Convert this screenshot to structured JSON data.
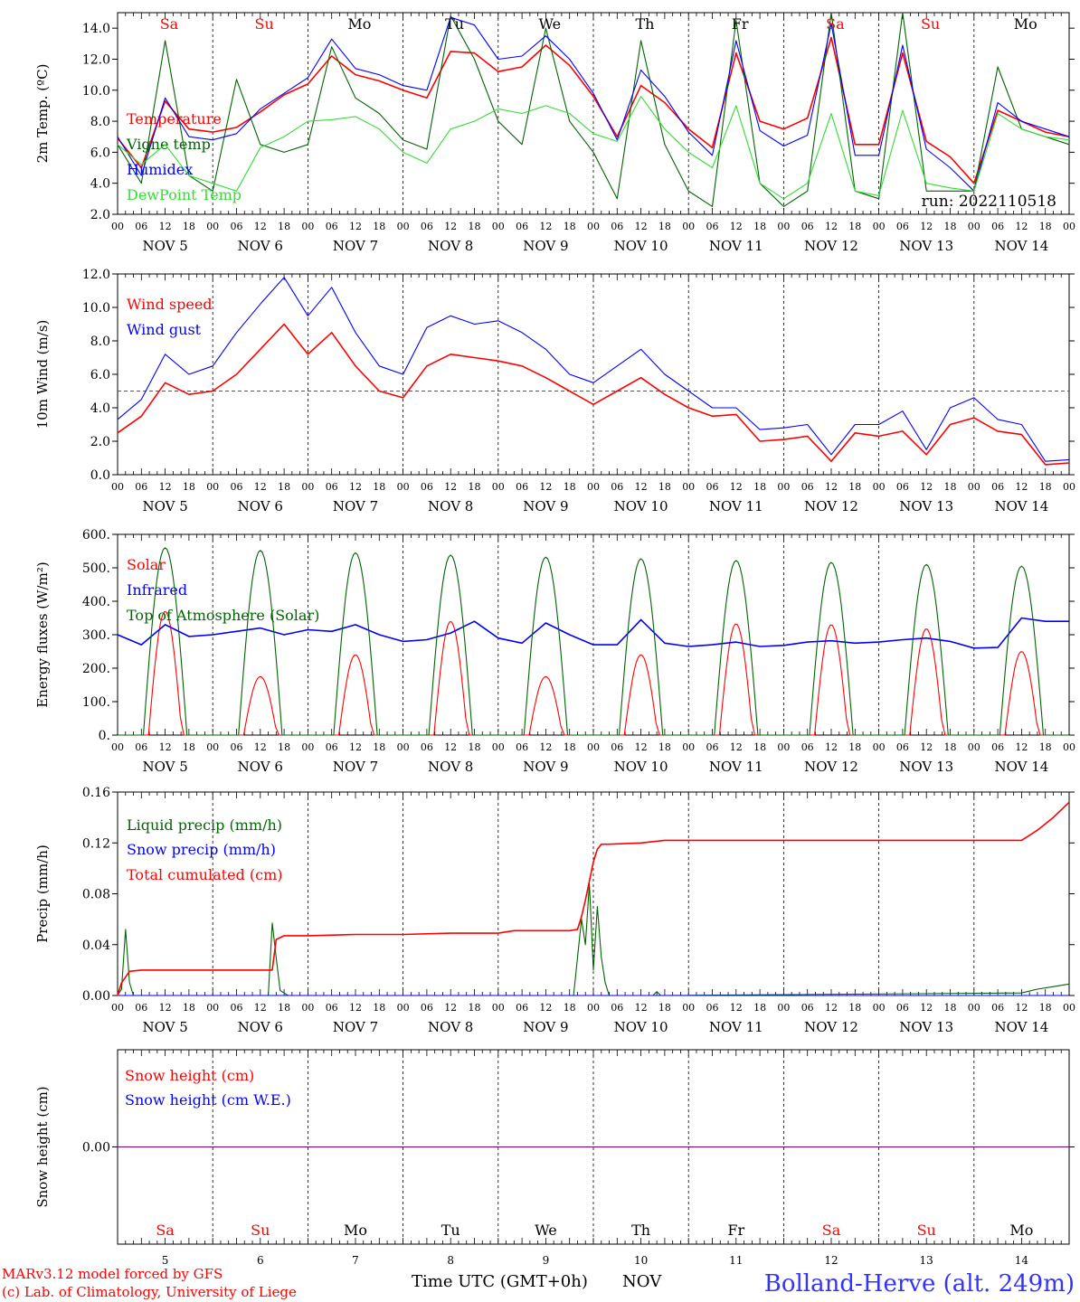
{
  "colors": {
    "red": "#ff0000",
    "green": "#006400",
    "blue": "#0000ff",
    "lightgreen": "#33dd33",
    "title": "#3333ff",
    "purple": "#800080"
  },
  "header_days": [
    "Sa",
    "Su",
    "Mo",
    "Tu",
    "We",
    "Th",
    "Fr",
    "Sa",
    "Su",
    "Mo"
  ],
  "header_day_colors": [
    "red",
    "red",
    "black",
    "black",
    "black",
    "black",
    "black",
    "red",
    "red",
    "black"
  ],
  "hour_ticks": [
    "00",
    "06",
    "12",
    "18"
  ],
  "date_labels": [
    "NOV  5",
    "NOV  6",
    "NOV  7",
    "NOV  8",
    "NOV  9",
    "NOV 10",
    "NOV 11",
    "NOV 12",
    "NOV 13",
    "NOV 14"
  ],
  "bottom_day_numbers": [
    "5",
    "6",
    "7",
    "8",
    "9",
    "10",
    "11",
    "12",
    "13",
    "14"
  ],
  "run_label": "run: 2022110518",
  "footer": {
    "credit_line1": "MARv3.12 model forced by GFS",
    "credit_line2": "(c) Lab. of Climatology, University of Liege",
    "time_label": "Time UTC (GMT+0h)",
    "month_label": "NOV",
    "station": "Bolland-Herve (alt. 249m)"
  },
  "chart_data": [
    {
      "type": "line",
      "ylabel": "2m Temp. (ºC)",
      "ylim": [
        2,
        15
      ],
      "yticks": [
        "2.0",
        "4.0",
        "6.0",
        "8.0",
        "10.0",
        "12.0",
        "14.0"
      ],
      "ytick_values": [
        2,
        4,
        6,
        8,
        10,
        12,
        14
      ],
      "x_unit": "hours since 2022-11-05 00 UTC",
      "xlim": [
        0,
        240
      ],
      "series": [
        {
          "name": "Temperature",
          "color": "red",
          "x": [
            0,
            6,
            12,
            18,
            24,
            30,
            36,
            42,
            48,
            54,
            60,
            66,
            72,
            78,
            84,
            90,
            96,
            102,
            108,
            114,
            120,
            126,
            132,
            138,
            144,
            150,
            156,
            162,
            168,
            174,
            180,
            186,
            192,
            198,
            204,
            210,
            216,
            222,
            228,
            234,
            240
          ],
          "y": [
            6.9,
            5.0,
            9.3,
            7.5,
            7.3,
            7.6,
            8.6,
            9.7,
            10.4,
            12.2,
            11.0,
            10.6,
            10.0,
            9.5,
            12.5,
            12.4,
            11.2,
            11.5,
            12.9,
            11.6,
            9.6,
            7.0,
            10.3,
            9.2,
            7.5,
            6.3,
            12.4,
            8.0,
            7.5,
            8.2,
            13.4,
            6.5,
            6.5,
            12.4,
            6.7,
            5.7,
            4.0,
            8.7,
            8.0,
            7.3,
            7.0
          ]
        },
        {
          "name": "Vigne temp",
          "color": "green",
          "x": [
            0,
            6,
            12,
            18,
            24,
            30,
            36,
            42,
            48,
            54,
            60,
            66,
            72,
            78,
            84,
            90,
            96,
            102,
            108,
            114,
            120,
            126,
            132,
            138,
            144,
            150,
            156,
            162,
            168,
            174,
            180,
            186,
            192,
            198,
            204,
            210,
            216,
            222,
            228,
            234,
            240
          ],
          "y": [
            6.5,
            4.0,
            13.2,
            4.5,
            3.5,
            10.7,
            6.5,
            6.0,
            6.5,
            12.8,
            9.5,
            8.5,
            6.8,
            6.2,
            14.8,
            12.0,
            8.0,
            6.5,
            14.0,
            8.0,
            6.0,
            3.0,
            13.2,
            6.5,
            3.5,
            2.5,
            14.5,
            4.0,
            2.5,
            3.5,
            15.0,
            3.5,
            3.0,
            15.0,
            3.5,
            3.5,
            3.5,
            11.5,
            7.5,
            7.0,
            6.5
          ]
        },
        {
          "name": "Humidex",
          "color": "blue",
          "x": [
            0,
            6,
            12,
            18,
            24,
            30,
            36,
            42,
            48,
            54,
            60,
            66,
            72,
            78,
            84,
            90,
            96,
            102,
            108,
            114,
            120,
            126,
            132,
            138,
            144,
            150,
            156,
            162,
            168,
            174,
            180,
            186,
            192,
            198,
            204,
            210,
            216,
            222,
            228,
            234,
            240
          ],
          "y": [
            7.0,
            4.5,
            9.5,
            7.0,
            6.8,
            7.2,
            8.8,
            9.8,
            10.8,
            13.3,
            11.4,
            11.0,
            10.3,
            10.0,
            14.7,
            14.2,
            12.0,
            12.2,
            13.5,
            12.0,
            9.8,
            6.8,
            11.3,
            9.6,
            7.3,
            5.8,
            13.2,
            7.4,
            6.4,
            7.1,
            14.3,
            5.8,
            5.8,
            12.9,
            6.2,
            5.0,
            3.5,
            9.2,
            8.0,
            7.5,
            7.0
          ]
        },
        {
          "name": "DewPoint Temp",
          "color": "lightgreen",
          "x": [
            0,
            6,
            12,
            18,
            24,
            30,
            36,
            42,
            48,
            54,
            60,
            66,
            72,
            78,
            84,
            90,
            96,
            102,
            108,
            114,
            120,
            126,
            132,
            138,
            144,
            150,
            156,
            162,
            168,
            174,
            180,
            186,
            192,
            198,
            204,
            210,
            216,
            222,
            228,
            234,
            240
          ],
          "y": [
            6.5,
            5.2,
            6.5,
            4.5,
            4.0,
            3.5,
            6.3,
            7.0,
            8.0,
            8.1,
            8.3,
            7.5,
            6.0,
            5.3,
            7.5,
            8.0,
            8.8,
            8.5,
            9.0,
            8.5,
            7.2,
            6.7,
            9.6,
            7.5,
            6.0,
            5.0,
            9.0,
            4.0,
            3.0,
            4.0,
            8.5,
            3.5,
            3.2,
            8.7,
            4.0,
            3.7,
            3.5,
            8.5,
            7.5,
            7.0,
            6.8
          ]
        }
      ]
    },
    {
      "type": "line",
      "ylabel": "10m Wind (m/s)",
      "ylim": [
        0,
        12
      ],
      "yticks": [
        "0.0",
        "2.0",
        "4.0",
        "6.0",
        "8.0",
        "10.0",
        "12.0"
      ],
      "ytick_values": [
        0,
        2,
        4,
        6,
        8,
        10,
        12
      ],
      "reference_line": 5,
      "x_unit": "hours since 2022-11-05 00 UTC",
      "xlim": [
        0,
        240
      ],
      "series": [
        {
          "name": "Wind speed",
          "color": "red",
          "x": [
            0,
            6,
            12,
            18,
            24,
            30,
            36,
            42,
            48,
            54,
            60,
            66,
            72,
            78,
            84,
            90,
            96,
            102,
            108,
            114,
            120,
            126,
            132,
            138,
            144,
            150,
            156,
            162,
            168,
            174,
            180,
            186,
            192,
            198,
            204,
            210,
            216,
            222,
            228,
            234,
            240
          ],
          "y": [
            2.5,
            3.5,
            5.5,
            4.8,
            5.0,
            6.0,
            7.5,
            9.0,
            7.2,
            8.5,
            6.5,
            5.0,
            4.6,
            6.5,
            7.2,
            7.0,
            6.8,
            6.5,
            5.8,
            5.0,
            4.2,
            5.0,
            5.8,
            4.8,
            4.0,
            3.5,
            3.6,
            2.0,
            2.1,
            2.3,
            0.8,
            2.5,
            2.3,
            2.6,
            1.2,
            3.0,
            3.4,
            2.6,
            2.4,
            0.6,
            0.7
          ]
        },
        {
          "name": "Wind gust",
          "color": "blue",
          "x": [
            0,
            6,
            12,
            18,
            24,
            30,
            36,
            42,
            48,
            54,
            60,
            66,
            72,
            78,
            84,
            90,
            96,
            102,
            108,
            114,
            120,
            126,
            132,
            138,
            144,
            150,
            156,
            162,
            168,
            174,
            180,
            186,
            192,
            198,
            204,
            210,
            216,
            222,
            228,
            234,
            240
          ],
          "y": [
            3.3,
            4.5,
            7.2,
            6.0,
            6.5,
            8.5,
            10.2,
            11.8,
            9.5,
            11.2,
            8.5,
            6.5,
            6.0,
            8.8,
            9.5,
            9.0,
            9.2,
            8.5,
            7.5,
            6.0,
            5.5,
            6.5,
            7.5,
            6.0,
            5.0,
            4.0,
            4.0,
            2.7,
            2.8,
            3.0,
            1.2,
            3.0,
            3.0,
            3.8,
            1.5,
            4.0,
            4.6,
            3.3,
            3.0,
            0.8,
            0.9
          ]
        }
      ]
    },
    {
      "type": "line",
      "ylabel": "Energy fluxes (W/m²)",
      "ylim": [
        0,
        600
      ],
      "yticks": [
        "0.",
        "100.",
        "200.",
        "300.",
        "400.",
        "500.",
        "600."
      ],
      "ytick_values": [
        0,
        100,
        200,
        300,
        400,
        500,
        600
      ],
      "x_unit": "hours since 2022-11-05 00 UTC",
      "xlim": [
        0,
        240
      ],
      "series": [
        {
          "name": "Solar",
          "color": "red",
          "daily_peaks": [
            370,
            175,
            240,
            340,
            175,
            240,
            333,
            330,
            318,
            250
          ]
        },
        {
          "name": "Infrared",
          "color": "blue",
          "x": [
            0,
            6,
            12,
            18,
            24,
            30,
            36,
            42,
            48,
            54,
            60,
            66,
            72,
            78,
            84,
            90,
            96,
            102,
            108,
            114,
            120,
            126,
            132,
            138,
            144,
            150,
            156,
            162,
            168,
            174,
            180,
            186,
            192,
            198,
            204,
            210,
            216,
            222,
            228,
            234,
            240
          ],
          "y": [
            300,
            270,
            330,
            295,
            300,
            310,
            320,
            300,
            315,
            310,
            330,
            300,
            280,
            285,
            305,
            340,
            290,
            275,
            335,
            300,
            270,
            270,
            345,
            275,
            265,
            270,
            278,
            265,
            268,
            278,
            282,
            275,
            278,
            285,
            290,
            280,
            260,
            262,
            350,
            340,
            340
          ]
        },
        {
          "name": "Top of Atmosphere (Solar)",
          "color": "green",
          "daily_peaks": [
            560,
            552,
            545,
            538,
            532,
            527,
            522,
            516,
            510,
            505
          ]
        }
      ]
    },
    {
      "type": "line",
      "ylabel": "Precip (mm/h)",
      "ylim": [
        0,
        0.16
      ],
      "yticks": [
        "0.00",
        "0.04",
        "0.08",
        "0.12",
        "0.16"
      ],
      "ytick_values": [
        0,
        0.04,
        0.08,
        0.12,
        0.16
      ],
      "x_unit": "hours since 2022-11-05 00 UTC",
      "xlim": [
        0,
        240
      ],
      "series": [
        {
          "name": "Liquid precip (mm/h)",
          "color": "green",
          "x": [
            0,
            1,
            2,
            3,
            4,
            38,
            39,
            40,
            41,
            42,
            43,
            115,
            116,
            117,
            118,
            119,
            120,
            121,
            122,
            123,
            124,
            135,
            136,
            137,
            228,
            232,
            236,
            240
          ],
          "y": [
            0,
            0.005,
            0.052,
            0.01,
            0,
            0,
            0.057,
            0.03,
            0.004,
            0.002,
            0,
            0,
            0.03,
            0.06,
            0.04,
            0.088,
            0.02,
            0.07,
            0.03,
            0.01,
            0,
            0,
            0.003,
            0,
            0.002,
            0.005,
            0.007,
            0.009
          ]
        },
        {
          "name": "Snow precip (mm/h)",
          "color": "blue",
          "x": [
            0,
            240
          ],
          "y": [
            0,
            0
          ]
        },
        {
          "name": "Total cumulated (cm)",
          "color": "red",
          "x": [
            0,
            1,
            3,
            6,
            12,
            24,
            36,
            39,
            40,
            42,
            48,
            60,
            72,
            84,
            96,
            100,
            108,
            114,
            116,
            117,
            118,
            119,
            120,
            121,
            122,
            124,
            132,
            138,
            144,
            156,
            168,
            180,
            192,
            204,
            216,
            228,
            232,
            236,
            240
          ],
          "y": [
            0,
            0.01,
            0.019,
            0.02,
            0.02,
            0.02,
            0.02,
            0.02,
            0.044,
            0.047,
            0.047,
            0.048,
            0.048,
            0.049,
            0.049,
            0.051,
            0.051,
            0.051,
            0.052,
            0.062,
            0.075,
            0.09,
            0.105,
            0.115,
            0.119,
            0.119,
            0.12,
            0.122,
            0.122,
            0.122,
            0.122,
            0.122,
            0.122,
            0.122,
            0.122,
            0.122,
            0.13,
            0.14,
            0.152
          ]
        }
      ]
    },
    {
      "type": "line",
      "ylabel": "Snow height (cm)",
      "ylim": [
        -1,
        1
      ],
      "yticks": [
        "0.00"
      ],
      "ytick_values": [
        0
      ],
      "x_unit": "hours since 2022-11-05 00 UTC",
      "xlim": [
        0,
        240
      ],
      "series": [
        {
          "name": "Snow height (cm)",
          "color": "red",
          "x": [
            0,
            240
          ],
          "y": [
            0,
            0
          ]
        },
        {
          "name": "Snow height (cm W.E.)",
          "color": "blue",
          "x": [
            0,
            240
          ],
          "y": [
            0,
            0
          ]
        }
      ]
    }
  ]
}
